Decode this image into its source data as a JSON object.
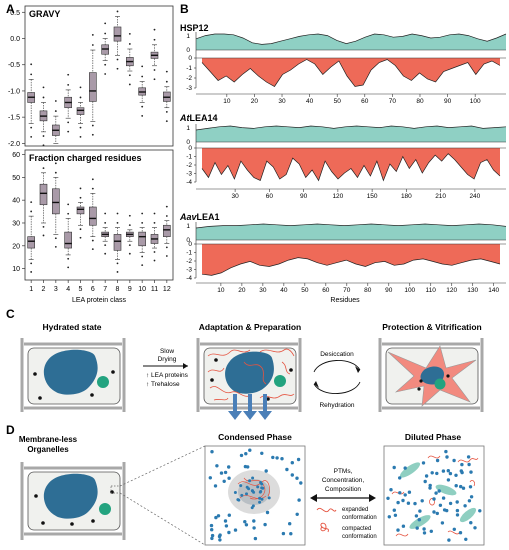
{
  "colors": {
    "box_fill": "#a99aa8",
    "teal": "#8fd0c4",
    "red": "#ee6a58",
    "cell_fill": "#f0f1ee",
    "nucleus": "#2e6e95",
    "vacuole": "#23a37f",
    "dot_blue": "#2b7ab0",
    "ellipse_teal": "#8fcfc1",
    "wall": "#a8a8a8"
  },
  "panelA": {
    "letter": "A",
    "gravy": {
      "title": "GRAVY",
      "ylim": [
        -2.05,
        0.62
      ],
      "yticks": [
        "0.5",
        "0.0",
        "-0.5",
        "-1.0",
        "-1.5",
        "-2.0"
      ],
      "ytick_values": [
        0.5,
        0.0,
        -0.5,
        -1.0,
        -1.5,
        -2.0
      ],
      "boxes": [
        {
          "class": 1,
          "q1": -1.22,
          "med": -1.12,
          "q3": -1.03,
          "lo": -1.62,
          "hi": -0.78
        },
        {
          "class": 2,
          "q1": -1.57,
          "med": -1.48,
          "q3": -1.38,
          "lo": -1.78,
          "hi": -1.22
        },
        {
          "class": 3,
          "q1": -1.85,
          "med": -1.75,
          "q3": -1.65,
          "lo": -2.0,
          "hi": -1.48
        },
        {
          "class": 4,
          "q1": -1.32,
          "med": -1.22,
          "q3": -1.12,
          "lo": -1.52,
          "hi": -0.98
        },
        {
          "class": 5,
          "q1": -1.45,
          "med": -1.37,
          "q3": -1.32,
          "lo": -1.62,
          "hi": -1.22
        },
        {
          "class": 6,
          "q1": -1.2,
          "med": -1.0,
          "q3": -0.65,
          "lo": -1.58,
          "hi": -0.22
        },
        {
          "class": 7,
          "q1": -0.3,
          "med": -0.2,
          "q3": -0.12,
          "lo": -0.42,
          "hi": 0.0
        },
        {
          "class": 8,
          "q1": -0.05,
          "med": 0.05,
          "q3": 0.22,
          "lo": -0.32,
          "hi": 0.42
        },
        {
          "class": 9,
          "q1": -0.52,
          "med": -0.44,
          "q3": -0.36,
          "lo": -0.62,
          "hi": -0.2
        },
        {
          "class": 10,
          "q1": -1.08,
          "med": -1.02,
          "q3": -0.94,
          "lo": -1.22,
          "hi": -0.82
        },
        {
          "class": 11,
          "q1": -0.38,
          "med": -0.32,
          "q3": -0.26,
          "lo": -0.52,
          "hi": -0.12
        },
        {
          "class": 12,
          "q1": -1.2,
          "med": -1.12,
          "q3": -1.02,
          "lo": -1.32,
          "hi": -0.92
        }
      ]
    },
    "fcr": {
      "title": "Fraction charged residues",
      "ylim": [
        5,
        62
      ],
      "yticks": [
        "60",
        "50",
        "40",
        "30",
        "20",
        "10"
      ],
      "ytick_values": [
        60,
        50,
        40,
        30,
        20,
        10
      ],
      "boxes": [
        {
          "class": 1,
          "q1": 19,
          "med": 22,
          "q3": 24,
          "lo": 14,
          "hi": 33
        },
        {
          "class": 2,
          "q1": 38,
          "med": 43,
          "q3": 47,
          "lo": 30,
          "hi": 52
        },
        {
          "class": 3,
          "q1": 34,
          "med": 39,
          "q3": 45,
          "lo": 25,
          "hi": 50
        },
        {
          "class": 4,
          "q1": 19,
          "med": 21,
          "q3": 26,
          "lo": 16,
          "hi": 32
        },
        {
          "class": 5,
          "q1": 34,
          "med": 36,
          "q3": 37,
          "lo": 29,
          "hi": 39
        },
        {
          "class": 6,
          "q1": 29,
          "med": 32,
          "q3": 37,
          "lo": 24,
          "hi": 43
        },
        {
          "class": 7,
          "q1": 24,
          "med": 25,
          "q3": 26,
          "lo": 22,
          "hi": 28
        },
        {
          "class": 8,
          "q1": 18,
          "med": 22,
          "q3": 25,
          "lo": 14,
          "hi": 28
        },
        {
          "class": 9,
          "q1": 24,
          "med": 25,
          "q3": 26,
          "lo": 22,
          "hi": 27
        },
        {
          "class": 10,
          "q1": 20,
          "med": 24,
          "q3": 26,
          "lo": 17,
          "hi": 28
        },
        {
          "class": 11,
          "q1": 21,
          "med": 23,
          "q3": 25,
          "lo": 19,
          "hi": 28
        },
        {
          "class": 12,
          "q1": 24,
          "med": 27,
          "q3": 29,
          "lo": 21,
          "hi": 31
        }
      ]
    },
    "xticks": [
      "1",
      "2",
      "3",
      "4",
      "5",
      "6",
      "7",
      "8",
      "9",
      "10",
      "11",
      "12"
    ],
    "xlabel": "LEA protein class"
  },
  "panelB": {
    "letter": "B",
    "xlabel": "Residues",
    "proteins": [
      {
        "name_prefix": "",
        "name_main": "HSP12",
        "length": 109,
        "xticks": [
          10,
          20,
          30,
          40,
          50,
          60,
          70,
          80,
          90,
          100
        ],
        "yticks": [
          "0",
          "-1",
          "-2",
          "-3"
        ],
        "top_profile": [
          0.7,
          0.9,
          1.0,
          1.0,
          0.95,
          0.75,
          0.45,
          0.35,
          0.4,
          0.55,
          0.7,
          0.85,
          0.95,
          1.0,
          0.9,
          0.6,
          0.4,
          0.55,
          0.8,
          1.0,
          0.95,
          0.8,
          0.85,
          1.0,
          0.9,
          0.75,
          0.8,
          0.95,
          1.0,
          0.9,
          0.7,
          0.55,
          0.75,
          1.0
        ],
        "bottom_profile": [
          0.15,
          0.45,
          0.75,
          0.6,
          0.8,
          0.55,
          0.35,
          0.6,
          0.8,
          0.95,
          0.55,
          0.4,
          0.2,
          0.05,
          0.2,
          0.55,
          0.3,
          0.1,
          0.6,
          0.95,
          0.9,
          0.4,
          0.15,
          0.05,
          0.25,
          0.6,
          0.75,
          0.5,
          0.7,
          0.8,
          0.45,
          0.35,
          0.25,
          0.15,
          0.55,
          0.2,
          0.1,
          0.25
        ]
      },
      {
        "name_prefix": "At",
        "name_main": "LEA14",
        "length": 262,
        "xticks": [
          30,
          60,
          90,
          120,
          150,
          180,
          210,
          240
        ],
        "yticks": [
          "0",
          "-1",
          "-2",
          "-3",
          "-4"
        ],
        "top_profile": [
          0.75,
          0.85,
          0.95,
          1.0,
          0.9,
          0.85,
          0.95,
          1.0,
          0.95,
          0.9,
          1.0,
          0.95,
          0.85,
          0.95,
          1.0,
          0.95,
          0.9,
          1.0,
          0.95,
          0.85,
          0.95,
          1.0,
          0.9,
          0.95,
          1.0,
          0.85,
          0.9,
          0.95
        ],
        "bottom_profile": [
          0.55,
          0.85,
          0.35,
          0.75,
          0.45,
          0.9,
          0.3,
          0.6,
          0.85,
          0.95,
          0.3,
          0.5,
          0.9,
          0.75,
          0.2,
          0.4,
          0.85,
          0.6,
          0.95,
          0.3,
          0.65,
          0.9,
          0.7,
          0.55,
          0.85,
          0.45,
          0.8,
          0.3,
          0.95,
          0.4,
          0.65,
          0.15,
          0.55,
          0.25,
          0.7,
          0.35,
          0.1,
          0.3,
          0.05,
          0.25,
          0.5,
          0.75,
          0.9,
          0.35,
          0.25,
          0.6,
          0.8
        ],
        "bottom_top_frac": 0.12
      },
      {
        "name_prefix": "Aav",
        "name_main": "LEA1",
        "length": 143,
        "xticks": [
          10,
          20,
          30,
          40,
          50,
          60,
          70,
          80,
          90,
          100,
          110,
          120,
          130,
          140
        ],
        "yticks": [
          "0",
          "-1",
          "-2",
          "-3",
          "-4"
        ],
        "top_profile": [
          0.75,
          0.85,
          0.9,
          0.9,
          0.95,
          1.0,
          0.95,
          0.9,
          0.95,
          1.0,
          0.95,
          0.9,
          0.95,
          1.0,
          0.95,
          0.9,
          0.95,
          1.0,
          0.95,
          0.9,
          0.95,
          1.0,
          0.95,
          0.85
        ],
        "bottom_profile": [
          0.85,
          0.9,
          0.8,
          0.6,
          0.45,
          0.35,
          0.5,
          0.55,
          0.45,
          0.3,
          0.2,
          0.25,
          0.4,
          0.5,
          0.4,
          0.3,
          0.45,
          0.55,
          0.4,
          0.35,
          0.5,
          0.45,
          0.3,
          0.25,
          0.35,
          0.45,
          0.5,
          0.4,
          0.3,
          0.25,
          0.35,
          0.45
        ],
        "bottom_top_frac": 0.25
      }
    ]
  },
  "panelC": {
    "letter": "C",
    "hydrated_label": "Hydrated state",
    "adaptation_label": "Adaptation & Preparation",
    "protection_label": "Protection & Vitrification",
    "arrow_line1": "Slow",
    "arrow_line2": "Drying",
    "lea_note": "↑ LEA proteins",
    "trehalose_note": "↑ Trehalose",
    "desiccation": "Desiccation",
    "rehydration": "Rehydration"
  },
  "panelD": {
    "letter": "D",
    "membraneless_line1": "Membrane-less",
    "membraneless_line2": "Organelles",
    "condensed": "Condensed Phase",
    "diluted": "Diluted Phase",
    "factors": [
      "PTMs,",
      "Concentration,",
      "Composition"
    ],
    "legend_expanded": [
      "expanded",
      "conformation"
    ],
    "legend_compacted": [
      "compacted",
      "conformation"
    ]
  }
}
